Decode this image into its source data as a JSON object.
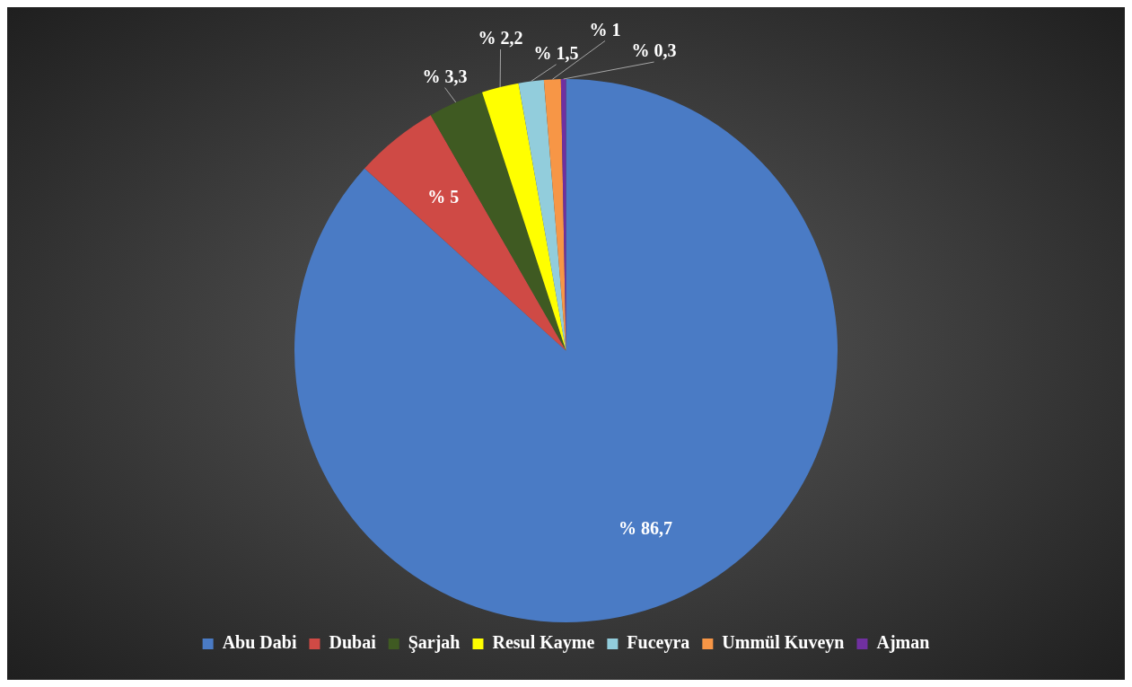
{
  "chart_data": {
    "type": "pie",
    "categories": [
      "Abu Dabi",
      "Dubai",
      "Şarjah",
      "Resul Kayme",
      "Fuceyra",
      "Ummül Kuveyn",
      "Ajman"
    ],
    "values": [
      86.7,
      5,
      3.3,
      2.2,
      1.5,
      1,
      0.3
    ],
    "colors": [
      "#4a7bc5",
      "#cf4a45",
      "#3f5a22",
      "#ffff00",
      "#92cddc",
      "#f79646",
      "#7030a0"
    ],
    "value_labels": [
      "% 86,7",
      "% 5",
      "% 3,3",
      "% 2,2",
      "% 1,5",
      "% 1",
      "% 0,3"
    ],
    "legend": "bottom"
  }
}
